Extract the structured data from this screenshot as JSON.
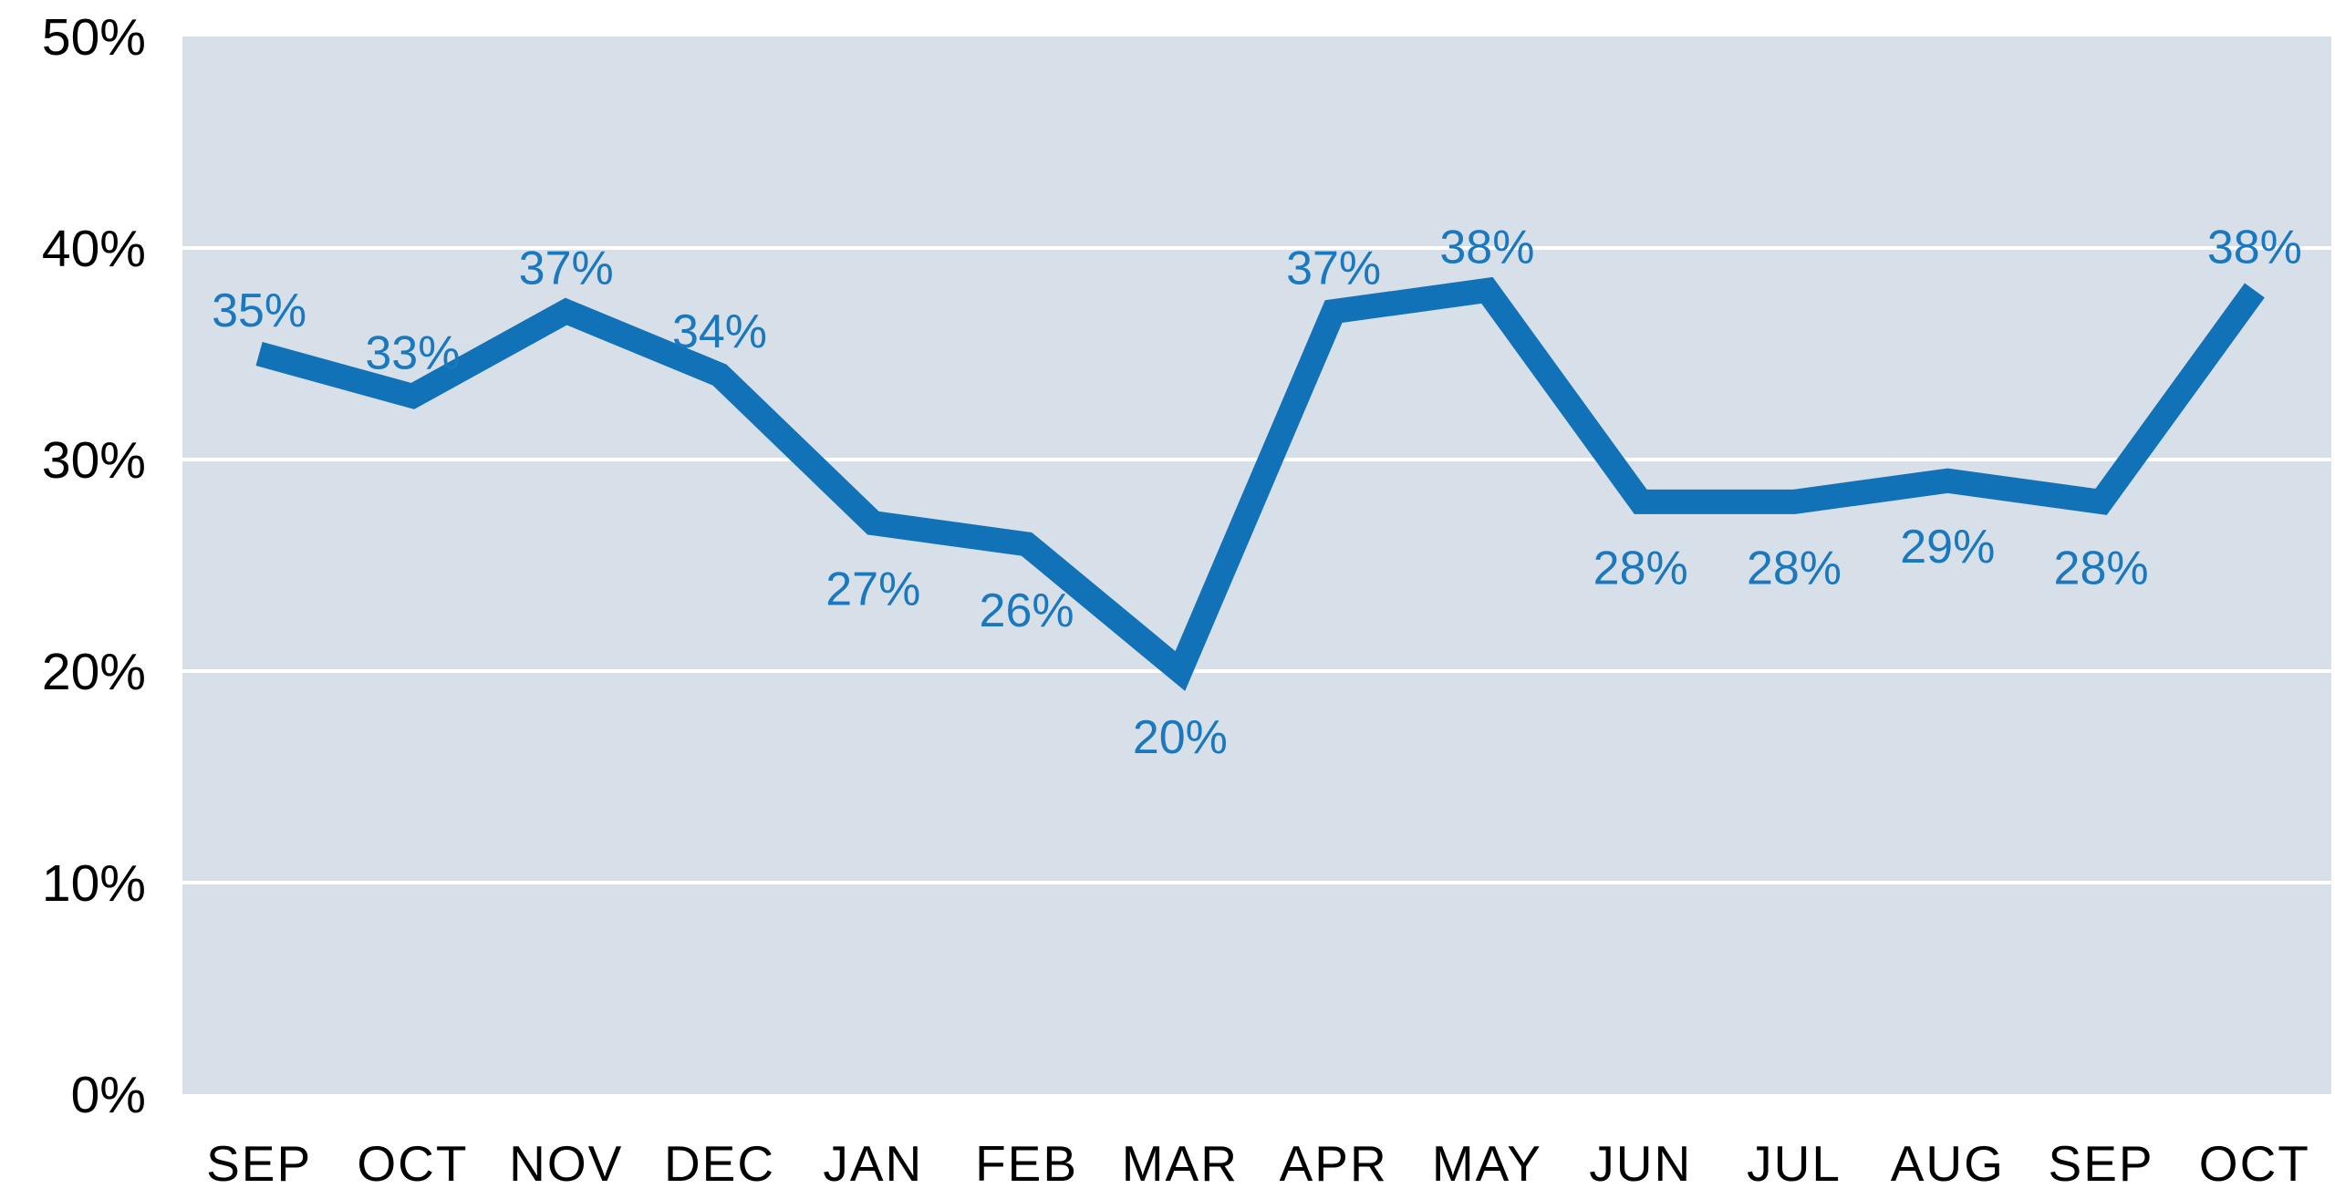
{
  "chart_data": {
    "type": "line",
    "categories": [
      "SEP",
      "OCT",
      "NOV",
      "DEC",
      "JAN",
      "FEB",
      "MAR",
      "APR",
      "MAY",
      "JUN",
      "JUL",
      "AUG",
      "SEP",
      "OCT"
    ],
    "values": [
      35,
      33,
      37,
      34,
      27,
      26,
      20,
      37,
      38,
      28,
      28,
      29,
      28,
      38
    ],
    "data_labels": [
      "35%",
      "33%",
      "37%",
      "34%",
      "27%",
      "26%",
      "20%",
      "37%",
      "38%",
      "28%",
      "28%",
      "29%",
      "28%",
      "38%"
    ],
    "label_placement": [
      "above",
      "above",
      "above",
      "above",
      "below",
      "below",
      "below",
      "above",
      "above",
      "below",
      "below",
      "below",
      "below",
      "above"
    ],
    "ylim": [
      0,
      50
    ],
    "ytick_step": 10,
    "ytick_labels": [
      "0%",
      "10%",
      "20%",
      "30%",
      "40%",
      "50%"
    ],
    "grid": true,
    "legend": "none",
    "colors": {
      "line": "#1272B7",
      "data_label_text": "#1A78BE",
      "plot_background": "#D7DFE9",
      "gridline": "#FFFFFF",
      "axis_text": "#000000",
      "page_background": "#FFFFFF"
    }
  }
}
